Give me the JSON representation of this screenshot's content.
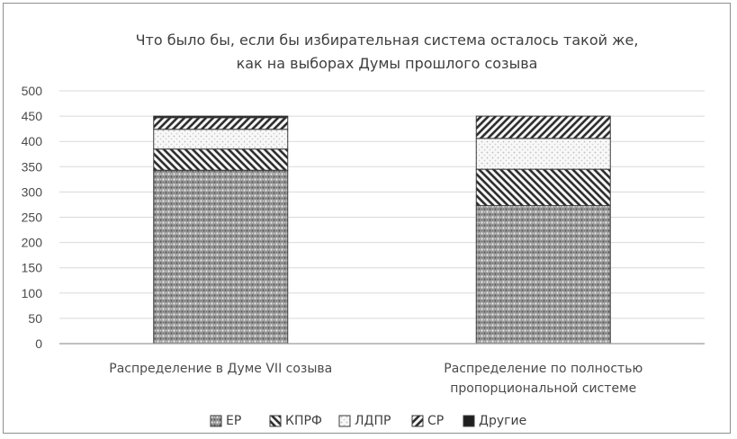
{
  "chart_data": {
    "type": "bar",
    "stacked": true,
    "title": "Что было бы, если бы избирательная система осталось такой же, как на выборах Думы прошлого созыва",
    "title_lines": [
      "Что было бы, если бы избирательная система осталось такой же,",
      "как на выборах Думы прошлого созыва"
    ],
    "xlabel": "",
    "ylabel": "",
    "ylim": [
      0,
      500
    ],
    "yticks": [
      0,
      50,
      100,
      150,
      200,
      250,
      300,
      350,
      400,
      450,
      500
    ],
    "grid": true,
    "legend_position": "bottom",
    "categories": [
      "Распределение в Думе VII созыва",
      "Распределение по полностью пропорциональной системе"
    ],
    "category_label_lines": [
      [
        "Распределение в Думе VII созыва"
      ],
      [
        "Распределение по полностью",
        "пропорциональной системе"
      ]
    ],
    "series": [
      {
        "name": "ЕР",
        "values": [
          343,
          273
        ],
        "pattern": "dots-dense"
      },
      {
        "name": "КПРФ",
        "values": [
          42,
          72
        ],
        "pattern": "diagonal-down"
      },
      {
        "name": "ЛДПР",
        "values": [
          39,
          61
        ],
        "pattern": "dots-light"
      },
      {
        "name": "СР",
        "values": [
          23,
          44
        ],
        "pattern": "diagonal-up"
      },
      {
        "name": "Другие",
        "values": [
          3,
          0
        ],
        "pattern": "solid"
      }
    ],
    "colors": {
      "fill": "#8a8a8a",
      "dark": "#2d2d2d",
      "grid": "#d9d9d9",
      "axis": "#9a9a9a",
      "light": "#f3f3f3"
    }
  }
}
